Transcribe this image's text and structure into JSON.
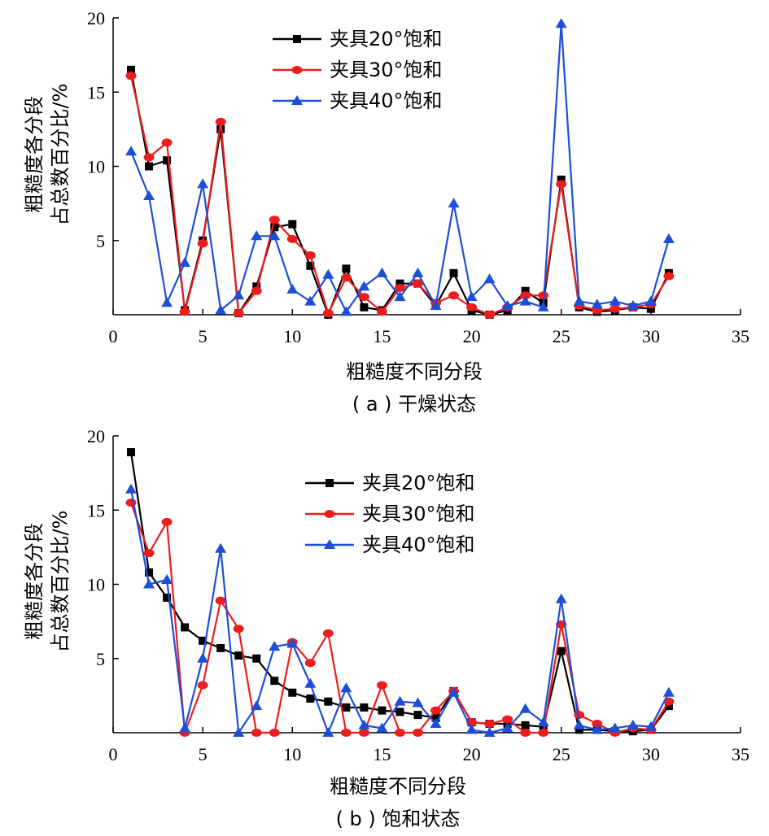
{
  "chart_data": [
    {
      "type": "line",
      "caption": "( a ) 干燥状态",
      "xlabel": "粗糙度不同分段",
      "ylabel_lines": [
        "粗糙度各分段",
        "占总数百分比/%"
      ],
      "xlim": [
        0,
        35
      ],
      "ylim": [
        0,
        20
      ],
      "xticks": [
        0,
        5,
        10,
        15,
        20,
        25,
        30,
        35
      ],
      "yticks": [
        5,
        10,
        15,
        20
      ],
      "legend_position": "top-center",
      "x": [
        1,
        2,
        3,
        4,
        5,
        6,
        7,
        8,
        9,
        10,
        11,
        12,
        13,
        14,
        15,
        16,
        17,
        18,
        19,
        20,
        21,
        22,
        23,
        24,
        25,
        26,
        27,
        28,
        29,
        30,
        31
      ],
      "series": [
        {
          "name": "夹具20°饱和",
          "color": "#000000",
          "marker": "square",
          "values": [
            16.5,
            10.0,
            10.4,
            0.3,
            5.0,
            12.5,
            0.1,
            1.9,
            5.9,
            6.1,
            3.3,
            0.0,
            3.1,
            0.5,
            0.3,
            2.1,
            2.1,
            0.6,
            2.8,
            0.3,
            0.0,
            0.3,
            1.6,
            0.8,
            9.1,
            0.5,
            0.2,
            0.3,
            0.5,
            0.4,
            2.8
          ]
        },
        {
          "name": "夹具30°饱和",
          "color": "#ee1c1c",
          "marker": "circle",
          "values": [
            16.1,
            10.6,
            11.6,
            0.2,
            4.8,
            13.0,
            0.1,
            1.6,
            6.4,
            5.1,
            4.0,
            0.1,
            2.5,
            1.2,
            0.2,
            1.8,
            2.1,
            0.8,
            1.3,
            0.5,
            0.0,
            0.5,
            1.3,
            1.3,
            8.8,
            0.6,
            0.3,
            0.4,
            0.5,
            0.7,
            2.6
          ]
        },
        {
          "name": "夹具40°饱和",
          "color": "#1d4ed8",
          "marker": "triangle",
          "values": [
            11.0,
            8.0,
            0.8,
            3.5,
            8.8,
            0.3,
            1.3,
            5.3,
            5.3,
            1.7,
            0.9,
            2.7,
            0.2,
            1.9,
            2.8,
            1.2,
            2.8,
            0.6,
            7.5,
            1.2,
            2.4,
            0.6,
            0.9,
            0.5,
            19.6,
            0.9,
            0.7,
            0.9,
            0.6,
            0.9,
            5.1
          ]
        }
      ]
    },
    {
      "type": "line",
      "caption": "( b ) 饱和状态",
      "xlabel": "粗糙度不同分段",
      "ylabel_lines": [
        "粗糙度各分段",
        "占总数百分比/%"
      ],
      "xlim": [
        0,
        35
      ],
      "ylim": [
        0,
        20
      ],
      "xticks": [
        0,
        5,
        10,
        15,
        20,
        25,
        30,
        35
      ],
      "yticks": [
        5,
        10,
        15,
        20
      ],
      "legend_position": "top-right",
      "x": [
        1,
        2,
        3,
        4,
        5,
        6,
        7,
        8,
        9,
        10,
        11,
        12,
        13,
        14,
        15,
        16,
        17,
        18,
        19,
        20,
        21,
        22,
        23,
        24,
        25,
        26,
        27,
        28,
        29,
        30,
        31
      ],
      "series": [
        {
          "name": "夹具20°饱和",
          "color": "#000000",
          "marker": "square",
          "values": [
            18.9,
            10.8,
            9.1,
            7.1,
            6.2,
            5.7,
            5.2,
            5.0,
            3.5,
            2.7,
            2.3,
            2.1,
            1.7,
            1.7,
            1.5,
            1.4,
            1.2,
            1.0,
            2.8,
            0.7,
            0.6,
            0.6,
            0.5,
            0.4,
            5.5,
            0.2,
            0.2,
            0.1,
            0.1,
            0.2,
            1.8
          ]
        },
        {
          "name": "夹具30°饱和",
          "color": "#ee1c1c",
          "marker": "circle",
          "values": [
            15.5,
            12.1,
            14.2,
            0.0,
            3.2,
            8.9,
            7.0,
            0.0,
            0.0,
            6.1,
            4.7,
            6.7,
            0.0,
            0.0,
            3.2,
            0.0,
            0.0,
            1.5,
            2.8,
            0.7,
            0.6,
            0.9,
            0.0,
            0.0,
            7.3,
            1.2,
            0.6,
            0.0,
            0.3,
            0.2,
            2.1
          ]
        },
        {
          "name": "夹具40°饱和",
          "color": "#1d4ed8",
          "marker": "triangle",
          "values": [
            16.4,
            10.0,
            10.3,
            0.3,
            5.0,
            12.4,
            0.0,
            1.8,
            5.8,
            6.0,
            3.3,
            0.0,
            3.0,
            0.5,
            0.3,
            2.1,
            2.0,
            0.6,
            2.7,
            0.2,
            0.0,
            0.3,
            1.6,
            0.7,
            9.0,
            0.5,
            0.2,
            0.3,
            0.5,
            0.4,
            2.7
          ]
        }
      ]
    }
  ]
}
